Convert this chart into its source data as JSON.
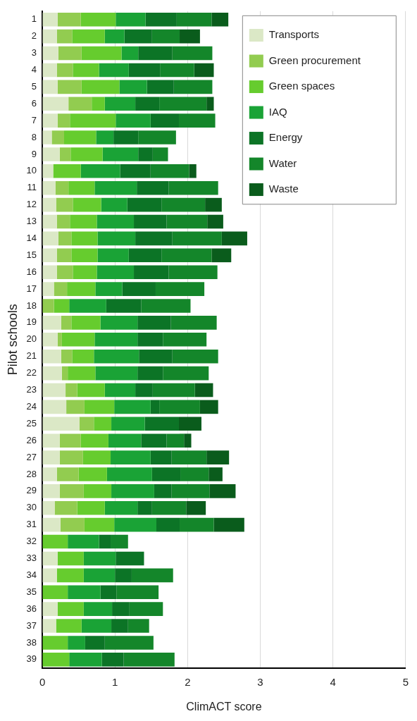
{
  "chart_data": {
    "type": "bar",
    "orientation": "horizontal",
    "stacked": true,
    "xlabel": "ClimACT score",
    "ylabel": "Pilot schools",
    "categories": [
      "1",
      "2",
      "3",
      "4",
      "5",
      "6",
      "7",
      "8",
      "9",
      "10",
      "11",
      "12",
      "13",
      "14",
      "15",
      "16",
      "17",
      "18",
      "19",
      "20",
      "21",
      "22",
      "23",
      "24",
      "25",
      "26",
      "27",
      "28",
      "29",
      "30",
      "31",
      "32",
      "33",
      "34",
      "35",
      "36",
      "37",
      "38",
      "39"
    ],
    "series": [
      {
        "name": "Transports",
        "color": "#dbe8c6",
        "values": [
          0.21,
          0.2,
          0.22,
          0.2,
          0.21,
          0.36,
          0.21,
          0.13,
          0.24,
          0.15,
          0.18,
          0.19,
          0.2,
          0.22,
          0.2,
          0.2,
          0.16,
          0,
          0.26,
          0.21,
          0.26,
          0.27,
          0.32,
          0.33,
          0.51,
          0.24,
          0.24,
          0.2,
          0.24,
          0.17,
          0.25,
          0,
          0.21,
          0.2,
          0,
          0.21,
          0.19,
          0,
          0
        ]
      },
      {
        "name": "Green procurement",
        "color": "#92cc50",
        "values": [
          0.32,
          0.21,
          0.32,
          0.22,
          0.33,
          0.32,
          0.17,
          0.17,
          0.15,
          0,
          0.18,
          0.23,
          0.18,
          0.18,
          0.2,
          0.22,
          0.18,
          0.16,
          0.14,
          0.06,
          0.15,
          0.08,
          0.16,
          0.25,
          0.2,
          0.29,
          0.32,
          0.3,
          0.33,
          0.31,
          0.33,
          0,
          0,
          0,
          0,
          0,
          0,
          0,
          0
        ]
      },
      {
        "name": "Green spaces",
        "color": "#66cc2e",
        "values": [
          0.48,
          0.45,
          0.55,
          0.36,
          0.52,
          0.18,
          0.63,
          0.44,
          0.44,
          0.38,
          0.36,
          0.39,
          0.37,
          0.36,
          0.36,
          0.33,
          0.39,
          0.21,
          0.4,
          0.45,
          0.3,
          0.38,
          0.38,
          0.41,
          0.24,
          0.38,
          0.38,
          0.39,
          0.38,
          0.38,
          0.41,
          0.35,
          0.36,
          0.37,
          0.35,
          0.36,
          0.35,
          0.35,
          0.37
        ]
      },
      {
        "name": "IAQ",
        "color": "#1aa336",
        "values": [
          0.41,
          0.27,
          0.23,
          0.41,
          0.38,
          0.42,
          0.48,
          0.24,
          0.49,
          0.54,
          0.58,
          0.36,
          0.51,
          0.52,
          0.43,
          0.51,
          0.37,
          0.51,
          0.51,
          0.59,
          0.62,
          0.58,
          0.42,
          0.5,
          0.46,
          0.45,
          0.55,
          0.62,
          0.59,
          0.45,
          0.58,
          0.43,
          0.44,
          0.43,
          0.45,
          0.39,
          0.41,
          0.24,
          0.45
        ]
      },
      {
        "name": "Energy",
        "color": "#0c7426",
        "values": [
          0.43,
          0.38,
          0.47,
          0.43,
          0.37,
          0.33,
          0.39,
          0.34,
          0.2,
          0.42,
          0.44,
          0.47,
          0.45,
          0.51,
          0.45,
          0.48,
          0.46,
          0.48,
          0.46,
          0.35,
          0.46,
          0.35,
          0.24,
          0.12,
          0.47,
          0.35,
          0.29,
          0.39,
          0.24,
          0.2,
          0.32,
          0.16,
          0.39,
          0.23,
          0.22,
          0.24,
          0.23,
          0.27,
          0.3
        ]
      },
      {
        "name": "Water",
        "color": "#14862a",
        "values": [
          0.48,
          0.38,
          0.55,
          0.47,
          0.53,
          0.65,
          0.5,
          0.52,
          0.21,
          0.53,
          0.68,
          0.6,
          0.56,
          0.68,
          0.69,
          0.67,
          0.67,
          0.68,
          0.63,
          0.6,
          0.63,
          0.63,
          0.58,
          0.56,
          0,
          0.24,
          0.48,
          0.39,
          0.52,
          0.47,
          0.47,
          0.24,
          0,
          0.57,
          0.58,
          0.46,
          0.29,
          0.67,
          0.7
        ]
      },
      {
        "name": "Waste",
        "color": "#0a5c1c",
        "values": [
          0.23,
          0.28,
          0,
          0.27,
          0,
          0.1,
          0,
          0,
          0,
          0.1,
          0,
          0.23,
          0.22,
          0.35,
          0.27,
          0,
          0,
          0,
          0,
          0,
          0,
          0,
          0.25,
          0.25,
          0.31,
          0.1,
          0.31,
          0.19,
          0.36,
          0.27,
          0.42,
          0,
          0,
          0,
          0,
          0,
          0,
          0,
          0
        ]
      }
    ],
    "xlim": [
      0,
      5
    ],
    "xticks": [
      0,
      1,
      2,
      3,
      4,
      5
    ],
    "grid": "x",
    "legend": "top right"
  }
}
